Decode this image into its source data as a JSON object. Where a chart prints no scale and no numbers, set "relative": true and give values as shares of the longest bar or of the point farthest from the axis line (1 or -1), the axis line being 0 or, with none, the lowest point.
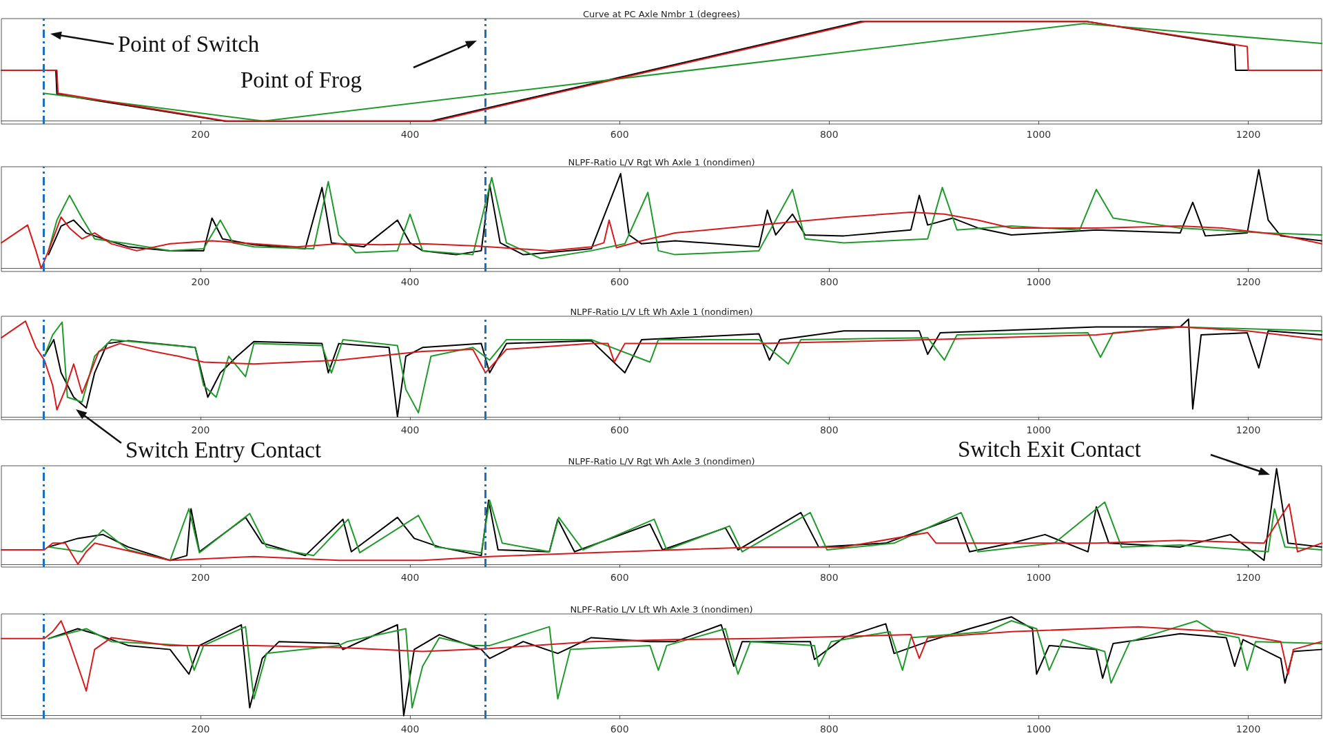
{
  "chart_data": [
    {
      "type": "line",
      "relative": true,
      "title": "Curve at PC Axle Nmbr 1 (degrees)",
      "xlim": [
        10,
        1270
      ],
      "xticks": [
        200,
        400,
        600,
        800,
        1000,
        1200
      ],
      "series": [
        {
          "color": "#000000",
          "x": [
            10,
            62,
            63,
            223,
            420,
            830,
            1046,
            1187,
            1188,
            1270
          ],
          "values": [
            0.51,
            0.51,
            0.27,
            0,
            0,
            1,
            1,
            0.76,
            0.51,
            0.51
          ]
        },
        {
          "color": "#1e9a2a",
          "x": [
            50,
            260,
            1043,
            1270
          ],
          "values": [
            0.28,
            0,
            0.98,
            0.78
          ]
        },
        {
          "color": "#d7191c",
          "x": [
            10,
            63,
            64,
            225,
            424,
            834,
            1046,
            1199,
            1200,
            1270
          ],
          "values": [
            0.51,
            0.51,
            0.28,
            0,
            0,
            1,
            1,
            0.75,
            0.51,
            0.51
          ]
        }
      ],
      "ref_lines": [
        {
          "axis": "x",
          "value": 50,
          "color": "#1a6fbf",
          "line_style": "dashed"
        },
        {
          "axis": "x",
          "value": 472,
          "color": "#1a6fbf",
          "line_style": "dashed"
        }
      ],
      "annotations": [
        "Point of Switch",
        "Point of Frog"
      ]
    },
    {
      "type": "line",
      "relative": true,
      "title": "NLPF-Ratio L/V Rgt Wh Axle 1 (nondimen)",
      "xlim": [
        10,
        1270
      ],
      "xticks": [
        200,
        400,
        600,
        800,
        1000,
        1200
      ],
      "series": [
        {
          "color": "#000000",
          "x": [
            55,
            67,
            79,
            91,
            107,
            131,
            171,
            203,
            211,
            221,
            251,
            300,
            316,
            325,
            356,
            388,
            400,
            412,
            444,
            468,
            476,
            486,
            508,
            573,
            601,
            609,
            621,
            653,
            733,
            741,
            749,
            765,
            777,
            814,
            878,
            886,
            894,
            918,
            942,
            974,
            1055,
            1135,
            1147,
            1159,
            1199,
            1210,
            1219,
            1231,
            1270
          ],
          "values": [
            0.14,
            0.43,
            0.49,
            0.36,
            0.3,
            0.22,
            0.18,
            0.18,
            0.51,
            0.3,
            0.24,
            0.2,
            0.82,
            0.26,
            0.22,
            0.49,
            0.26,
            0.18,
            0.14,
            0.18,
            0.85,
            0.26,
            0.14,
            0.2,
            0.96,
            0.34,
            0.25,
            0.28,
            0.22,
            0.59,
            0.34,
            0.55,
            0.34,
            0.33,
            0.39,
            0.74,
            0.44,
            0.51,
            0.41,
            0.34,
            0.39,
            0.36,
            0.67,
            0.33,
            0.36,
            1,
            0.49,
            0.33,
            0.28
          ]
        },
        {
          "color": "#1e9a2a",
          "x": [
            55,
            63,
            75,
            87,
            99,
            131,
            171,
            203,
            219,
            231,
            251,
            308,
            322,
            332,
            348,
            388,
            400,
            412,
            460,
            478,
            492,
            525,
            573,
            605,
            627,
            637,
            653,
            733,
            765,
            777,
            814,
            894,
            908,
            922,
            974,
            1039,
            1055,
            1071,
            1135,
            1215,
            1270
          ],
          "values": [
            0.18,
            0.49,
            0.74,
            0.51,
            0.3,
            0.25,
            0.18,
            0.2,
            0.49,
            0.26,
            0.22,
            0.2,
            0.88,
            0.34,
            0.16,
            0.18,
            0.55,
            0.18,
            0.14,
            0.92,
            0.26,
            0.1,
            0.18,
            0.25,
            0.77,
            0.18,
            0.14,
            0.18,
            0.8,
            0.3,
            0.26,
            0.3,
            0.82,
            0.39,
            0.43,
            0.39,
            0.8,
            0.51,
            0.41,
            0.36,
            0.34
          ]
        },
        {
          "color": "#d7191c",
          "x": [
            10,
            35,
            43,
            48,
            55,
            67,
            75,
            87,
            99,
            115,
            139,
            171,
            211,
            251,
            292,
            332,
            372,
            412,
            460,
            533,
            573,
            585,
            590,
            597,
            621,
            653,
            733,
            814,
            878,
            910,
            942,
            974,
            1055,
            1135,
            1175,
            1231,
            1270
          ],
          "values": [
            0.26,
            0.44,
            0.18,
            0,
            0.18,
            0.52,
            0.41,
            0.3,
            0.36,
            0.25,
            0.18,
            0.25,
            0.28,
            0.25,
            0.22,
            0.25,
            0.24,
            0.25,
            0.23,
            0.18,
            0.22,
            0.26,
            0.49,
            0.21,
            0.28,
            0.36,
            0.44,
            0.52,
            0.57,
            0.55,
            0.49,
            0.41,
            0.41,
            0.43,
            0.41,
            0.34,
            0.25
          ]
        }
      ],
      "ref_lines": [
        {
          "axis": "x",
          "value": 50,
          "color": "#1a6fbf",
          "line_style": "dashed"
        },
        {
          "axis": "x",
          "value": 472,
          "color": "#1a6fbf",
          "line_style": "dashed"
        }
      ]
    },
    {
      "type": "line",
      "relative": true,
      "title": "NLPF-Ratio L/V Lft Wh Axle 1 (nondimen)",
      "xlim": [
        10,
        1270
      ],
      "xticks": [
        200,
        400,
        600,
        800,
        1000,
        1200
      ],
      "series": [
        {
          "color": "#000000",
          "x": [
            51,
            60,
            67,
            79,
            91,
            99,
            111,
            131,
            195,
            207,
            219,
            235,
            251,
            316,
            322,
            332,
            380,
            388,
            396,
            412,
            468,
            476,
            492,
            573,
            605,
            621,
            733,
            743,
            753,
            814,
            886,
            894,
            906,
            1055,
            1135,
            1143,
            1147,
            1155,
            1199,
            1210,
            1219,
            1270
          ],
          "values": [
            0.62,
            0.79,
            0.45,
            0.2,
            0.09,
            0.45,
            0.75,
            0.78,
            0.71,
            0.2,
            0.45,
            0.62,
            0.77,
            0.75,
            0.45,
            0.75,
            0.71,
            0,
            0.62,
            0.71,
            0.75,
            0.45,
            0.75,
            0.78,
            0.45,
            0.79,
            0.85,
            0.58,
            0.79,
            0.88,
            0.88,
            0.64,
            0.86,
            0.92,
            0.92,
            1,
            0.08,
            0.84,
            0.86,
            0.5,
            0.88,
            0.84
          ]
        },
        {
          "color": "#1e9a2a",
          "x": [
            51,
            59,
            68,
            73,
            87,
            99,
            115,
            195,
            203,
            215,
            227,
            243,
            251,
            316,
            325,
            336,
            388,
            396,
            408,
            420,
            460,
            476,
            492,
            573,
            629,
            637,
            733,
            761,
            773,
            894,
            910,
            922,
            1047,
            1059,
            1071,
            1135,
            1270
          ],
          "values": [
            0.62,
            0.84,
            0.97,
            0.2,
            0.15,
            0.62,
            0.79,
            0.71,
            0.32,
            0.2,
            0.62,
            0.41,
            0.75,
            0.73,
            0.45,
            0.79,
            0.73,
            0.28,
            0.04,
            0.62,
            0.71,
            0.58,
            0.79,
            0.79,
            0.56,
            0.79,
            0.79,
            0.54,
            0.79,
            0.81,
            0.58,
            0.84,
            0.86,
            0.61,
            0.86,
            0.92,
            0.88
          ]
        },
        {
          "color": "#d7191c",
          "x": [
            10,
            33,
            43,
            51,
            59,
            63,
            71,
            79,
            87,
            95,
            103,
            123,
            155,
            179,
            203,
            251,
            332,
            412,
            460,
            472,
            492,
            573,
            589,
            595,
            605,
            733,
            894,
            1055,
            1135,
            1199,
            1270
          ],
          "values": [
            0.81,
            0.98,
            0.71,
            0.58,
            0.32,
            0.07,
            0.28,
            0.54,
            0.24,
            0.45,
            0.67,
            0.75,
            0.67,
            0.62,
            0.56,
            0.54,
            0.58,
            0.67,
            0.69,
            0.45,
            0.69,
            0.75,
            0.75,
            0.56,
            0.75,
            0.75,
            0.79,
            0.84,
            0.92,
            0.88,
            0.79
          ]
        }
      ],
      "ref_lines": [
        {
          "axis": "x",
          "value": 50,
          "color": "#1a6fbf",
          "line_style": "dashed"
        },
        {
          "axis": "x",
          "value": 472,
          "color": "#1a6fbf",
          "line_style": "dashed"
        }
      ],
      "annotations": [
        "Switch Entry Contact"
      ]
    },
    {
      "type": "line",
      "relative": true,
      "title": "NLPF-Ratio L/V Rgt Wh Axle 3 (nondimen)",
      "xlim": [
        10,
        1270
      ],
      "xticks": [
        200,
        400,
        600,
        800,
        1000,
        1200
      ],
      "series": [
        {
          "color": "#000000",
          "x": [
            55,
            83,
            107,
            131,
            171,
            187,
            191,
            199,
            243,
            259,
            300,
            336,
            344,
            388,
            404,
            428,
            468,
            475,
            484,
            533,
            541,
            557,
            629,
            641,
            701,
            713,
            773,
            790,
            854,
            922,
            934,
            974,
            1006,
            1047,
            1055,
            1067,
            1135,
            1183,
            1215,
            1227,
            1238,
            1270
          ],
          "values": [
            0.18,
            0.27,
            0.31,
            0.18,
            0.04,
            0.09,
            0.58,
            0.13,
            0.49,
            0.22,
            0.09,
            0.47,
            0.13,
            0.49,
            0.27,
            0.18,
            0.09,
            0.67,
            0.15,
            0.13,
            0.47,
            0.13,
            0.42,
            0.15,
            0.38,
            0.15,
            0.54,
            0.18,
            0.22,
            0.49,
            0.13,
            0.22,
            0.31,
            0.13,
            0.6,
            0.22,
            0.18,
            0.31,
            0.04,
            1,
            0.22,
            0.18
          ]
        },
        {
          "color": "#1e9a2a",
          "x": [
            55,
            87,
            107,
            131,
            171,
            189,
            199,
            247,
            263,
            308,
            341,
            352,
            408,
            424,
            468,
            476,
            488,
            533,
            542,
            565,
            633,
            645,
            705,
            717,
            782,
            798,
            862,
            926,
            942,
            1015,
            1063,
            1079,
            1135,
            1219,
            1225,
            1235,
            1270
          ],
          "values": [
            0.18,
            0.13,
            0.36,
            0.15,
            0.04,
            0.58,
            0.12,
            0.53,
            0.18,
            0.09,
            0.47,
            0.12,
            0.51,
            0.18,
            0.12,
            0.67,
            0.22,
            0.13,
            0.49,
            0.15,
            0.47,
            0.15,
            0.4,
            0.13,
            0.54,
            0.15,
            0.22,
            0.54,
            0.13,
            0.22,
            0.65,
            0.18,
            0.2,
            0.13,
            0.58,
            0.18,
            0.15
          ]
        },
        {
          "color": "#d7191c",
          "x": [
            10,
            51,
            59,
            71,
            83,
            91,
            99,
            171,
            251,
            332,
            412,
            476,
            573,
            653,
            733,
            814,
            894,
            902,
            1055,
            1135,
            1215,
            1239,
            1247,
            1270
          ],
          "values": [
            0.15,
            0.15,
            0.22,
            0.22,
            0,
            0.13,
            0.22,
            0.04,
            0.08,
            0.04,
            0.04,
            0.08,
            0.12,
            0.15,
            0.18,
            0.18,
            0.33,
            0.22,
            0.22,
            0.25,
            0.22,
            0.63,
            0.13,
            0.22
          ]
        }
      ],
      "ref_lines": [
        {
          "axis": "x",
          "value": 50,
          "color": "#1a6fbf",
          "line_style": "dashed"
        },
        {
          "axis": "x",
          "value": 472,
          "color": "#1a6fbf",
          "line_style": "dashed"
        }
      ],
      "annotations": [
        "Switch Exit Contact"
      ]
    },
    {
      "type": "line",
      "relative": true,
      "title": "NLPF-Ratio L/V Lft Wh Axle 3 (nondimen)",
      "xlim": [
        10,
        1270
      ],
      "xticks": [
        200,
        400,
        600,
        800,
        1000,
        1200
      ],
      "series": [
        {
          "color": "#000000",
          "x": [
            55,
            83,
            99,
            131,
            171,
            189,
            199,
            239,
            247,
            259,
            275,
            332,
            336,
            388,
            394,
            404,
            428,
            468,
            476,
            508,
            541,
            573,
            629,
            653,
            697,
            709,
            717,
            782,
            786,
            814,
            854,
            862,
            894,
            934,
            974,
            994,
            998,
            1010,
            1055,
            1061,
            1071,
            1135,
            1179,
            1187,
            1195,
            1231,
            1235,
            1243,
            1270
          ],
          "values": [
            0.78,
            0.88,
            0.83,
            0.71,
            0.67,
            0.42,
            0.71,
            0.92,
            0.08,
            0.58,
            0.75,
            0.73,
            0.67,
            0.92,
            0,
            0.67,
            0.82,
            0.67,
            0.58,
            0.75,
            0.63,
            0.79,
            0.75,
            0.75,
            0.92,
            0.5,
            0.75,
            0.75,
            0.57,
            0.79,
            0.93,
            0.63,
            0.75,
            0.88,
            1,
            0.88,
            0.42,
            0.71,
            0.67,
            0.38,
            0.73,
            0.83,
            0.79,
            0.5,
            0.77,
            0.58,
            0.33,
            0.65,
            0.67
          ]
        },
        {
          "color": "#1e9a2a",
          "x": [
            55,
            91,
            115,
            187,
            194,
            203,
            243,
            251,
            263,
            332,
            340,
            396,
            402,
            412,
            428,
            460,
            476,
            533,
            541,
            553,
            629,
            637,
            645,
            701,
            713,
            725,
            786,
            790,
            802,
            858,
            870,
            878,
            950,
            974,
            998,
            1010,
            1023,
            1063,
            1069,
            1087,
            1151,
            1171,
            1191,
            1199,
            1207,
            1270
          ],
          "values": [
            0.78,
            0.88,
            0.75,
            0.71,
            0.46,
            0.71,
            0.9,
            0.17,
            0.63,
            0.71,
            0.75,
            0.88,
            0.08,
            0.5,
            0.79,
            0.71,
            0.71,
            0.9,
            0.17,
            0.67,
            0.71,
            0.46,
            0.71,
            0.88,
            0.42,
            0.75,
            0.71,
            0.5,
            0.75,
            0.85,
            0.46,
            0.79,
            0.85,
            0.96,
            0.88,
            0.46,
            0.77,
            0.65,
            0.33,
            0.75,
            0.96,
            0.83,
            0.79,
            0.46,
            0.75,
            0.73
          ]
        },
        {
          "color": "#d7191c",
          "x": [
            10,
            51,
            59,
            67,
            75,
            87,
            91,
            99,
            115,
            171,
            251,
            332,
            412,
            476,
            573,
            653,
            733,
            878,
            886,
            894,
            974,
            1095,
            1175,
            1231,
            1238,
            1243,
            1270
          ],
          "values": [
            0.78,
            0.78,
            0.85,
            0.96,
            0.75,
            0.38,
            0.25,
            0.67,
            0.79,
            0.71,
            0.71,
            0.69,
            0.65,
            0.68,
            0.75,
            0.77,
            0.78,
            0.82,
            0.58,
            0.79,
            0.85,
            0.9,
            0.85,
            0.75,
            0.42,
            0.67,
            0.75
          ]
        }
      ],
      "ref_lines": [
        {
          "axis": "x",
          "value": 50,
          "color": "#1a6fbf",
          "line_style": "dashed"
        },
        {
          "axis": "x",
          "value": 472,
          "color": "#1a6fbf",
          "line_style": "dashed"
        }
      ]
    }
  ]
}
